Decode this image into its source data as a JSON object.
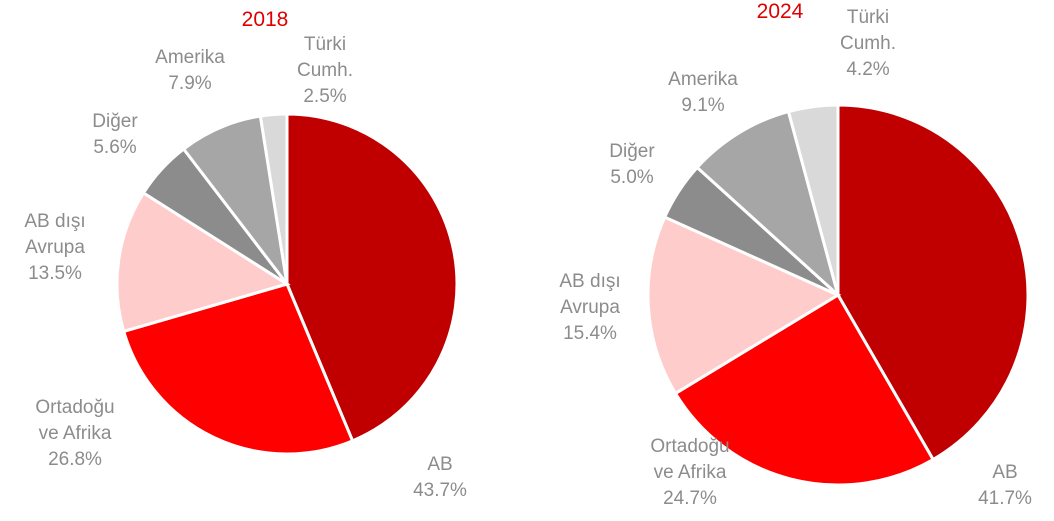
{
  "chart_data": [
    {
      "type": "pie",
      "title": "2018",
      "categories": [
        "AB",
        "Ortadoğu ve Afrika",
        "AB dışı Avrupa",
        "Diğer",
        "Amerika",
        "Türki Cumh."
      ],
      "values": [
        43.7,
        26.8,
        13.5,
        5.6,
        7.9,
        2.5
      ],
      "value_labels": [
        "43.7%",
        "26.8%",
        "13.5%",
        "5.6%",
        "7.9%",
        "2.5%"
      ],
      "colors": [
        "#c00000",
        "#ff0000",
        "#ffcccc",
        "#8c8c8c",
        "#a6a6a6",
        "#d9d9d9"
      ]
    },
    {
      "type": "pie",
      "title": "2024",
      "categories": [
        "AB",
        "Ortadoğu ve Afrika",
        "AB dışı Avrupa",
        "Diğer",
        "Amerika",
        "Türki Cumh."
      ],
      "values": [
        41.7,
        24.7,
        15.4,
        5.0,
        9.1,
        4.2
      ],
      "value_labels": [
        "41.7%",
        "24.7%",
        "15.4%",
        "5.0%",
        "9.1%",
        "4.2%"
      ],
      "colors": [
        "#c00000",
        "#ff0000",
        "#ffcccc",
        "#8c8c8c",
        "#a6a6a6",
        "#d9d9d9"
      ]
    }
  ]
}
